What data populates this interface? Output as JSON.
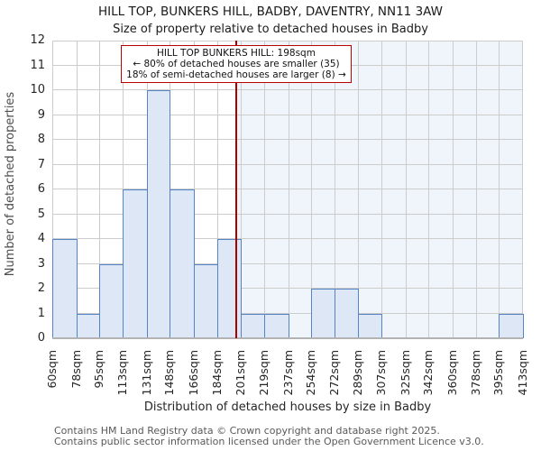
{
  "chart_data": {
    "type": "bar",
    "title": "HILL TOP, BUNKERS HILL, BADBY, DAVENTRY, NN11 3AW",
    "subtitle": "Size of property relative to detached houses in Badby",
    "xlabel": "Distribution of detached houses by size in Badby",
    "ylabel": "Number of detached properties",
    "ylim": [
      0,
      12
    ],
    "ytick_step": 1,
    "grid": true,
    "legend": "none",
    "bin_edges_sqm": [
      60,
      78,
      95,
      113,
      131,
      148,
      166,
      184,
      201,
      219,
      237,
      254,
      272,
      289,
      307,
      325,
      342,
      360,
      378,
      395,
      413
    ],
    "x_tick_labels": [
      "60sqm",
      "78sqm",
      "95sqm",
      "113sqm",
      "131sqm",
      "148sqm",
      "166sqm",
      "184sqm",
      "201sqm",
      "219sqm",
      "237sqm",
      "254sqm",
      "272sqm",
      "289sqm",
      "307sqm",
      "325sqm",
      "342sqm",
      "360sqm",
      "378sqm",
      "395sqm",
      "413sqm"
    ],
    "values": [
      4,
      1,
      3,
      6,
      10,
      6,
      3,
      4,
      1,
      1,
      0,
      2,
      2,
      1,
      0,
      0,
      0,
      0,
      0,
      1
    ],
    "marker": {
      "value_sqm": 198,
      "line1": "HILL TOP BUNKERS HILL: 198sqm",
      "line2": "← 80% of detached houses are smaller (35)",
      "line3": "18% of semi-detached houses are larger (8) →"
    },
    "colors": {
      "bar_fill": "#dde7f5",
      "bar_edge": "#5585c4",
      "grid": "#cccccc",
      "axis": "#b3b3b3",
      "shade_right_of_marker": "#f0f4fb",
      "marker_line": "#aa0000",
      "annotation_border": "#bb0000"
    }
  },
  "footer": {
    "line1": "Contains HM Land Registry data © Crown copyright and database right 2025.",
    "line2": "Contains public sector information licensed under the Open Government Licence v3.0."
  }
}
